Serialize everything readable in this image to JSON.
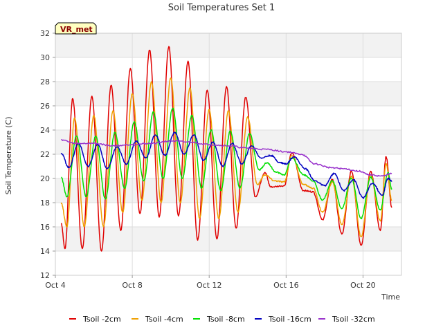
{
  "chart_data": {
    "type": "line",
    "title": "Soil Temperatures Set 1",
    "xlabel": "Time",
    "ylabel": "Soil Temperature (C)",
    "badge": "VR_met",
    "ylim": [
      12,
      32
    ],
    "xlim": [
      "Oct 4",
      "Oct 22"
    ],
    "y_ticks": [
      12,
      14,
      16,
      18,
      20,
      22,
      24,
      26,
      28,
      30,
      32
    ],
    "x_ticks": [
      {
        "label": "Oct 4",
        "day": 4
      },
      {
        "label": "Oct 8",
        "day": 8
      },
      {
        "label": "Oct 12",
        "day": 12
      },
      {
        "label": "Oct 16",
        "day": 16
      },
      {
        "label": "Oct 20",
        "day": 20
      }
    ],
    "grid": true,
    "legend_position": "bottom",
    "series": [
      {
        "name": "Tsoil -2cm",
        "color": "#e00000",
        "points": [
          [
            4.3,
            16.3
          ],
          [
            4.5,
            14.2
          ],
          [
            4.9,
            26.6
          ],
          [
            5.4,
            14.2
          ],
          [
            5.9,
            26.8
          ],
          [
            6.4,
            14.0
          ],
          [
            6.9,
            27.7
          ],
          [
            7.4,
            15.7
          ],
          [
            7.9,
            29.1
          ],
          [
            8.4,
            17.1
          ],
          [
            8.9,
            30.6
          ],
          [
            9.4,
            16.8
          ],
          [
            9.9,
            30.9
          ],
          [
            10.4,
            16.9
          ],
          [
            10.9,
            29.7
          ],
          [
            11.4,
            14.9
          ],
          [
            11.9,
            27.3
          ],
          [
            12.4,
            15.0
          ],
          [
            12.9,
            27.6
          ],
          [
            13.4,
            15.9
          ],
          [
            13.9,
            26.7
          ],
          [
            14.4,
            18.5
          ],
          [
            14.9,
            20.5
          ],
          [
            15.2,
            19.3
          ],
          [
            15.9,
            19.4
          ],
          [
            16.3,
            22.1
          ],
          [
            16.9,
            19.0
          ],
          [
            17.4,
            18.9
          ],
          [
            17.9,
            16.6
          ],
          [
            18.4,
            19.9
          ],
          [
            18.9,
            15.4
          ],
          [
            19.4,
            20.6
          ],
          [
            19.9,
            14.5
          ],
          [
            20.4,
            20.6
          ],
          [
            20.9,
            15.7
          ],
          [
            21.2,
            21.8
          ],
          [
            21.5,
            17.6
          ]
        ]
      },
      {
        "name": "Tsoil -4cm",
        "color": "#f0a000",
        "points": [
          [
            4.3,
            18.0
          ],
          [
            4.6,
            16.0
          ],
          [
            5.0,
            25.0
          ],
          [
            5.5,
            16.0
          ],
          [
            6.0,
            25.2
          ],
          [
            6.5,
            16.0
          ],
          [
            7.0,
            25.6
          ],
          [
            7.5,
            17.2
          ],
          [
            8.0,
            27.0
          ],
          [
            8.5,
            18.2
          ],
          [
            9.0,
            28.0
          ],
          [
            9.5,
            18.0
          ],
          [
            10.0,
            28.3
          ],
          [
            10.5,
            18.0
          ],
          [
            11.0,
            27.5
          ],
          [
            11.5,
            16.7
          ],
          [
            12.0,
            25.7
          ],
          [
            12.5,
            16.7
          ],
          [
            13.0,
            25.6
          ],
          [
            13.5,
            17.2
          ],
          [
            14.0,
            25.1
          ],
          [
            14.5,
            19.5
          ],
          [
            14.9,
            20.3
          ],
          [
            15.4,
            19.8
          ],
          [
            15.9,
            19.7
          ],
          [
            16.3,
            21.9
          ],
          [
            16.9,
            19.5
          ],
          [
            17.4,
            19.2
          ],
          [
            17.9,
            17.2
          ],
          [
            18.4,
            19.7
          ],
          [
            18.9,
            16.2
          ],
          [
            19.4,
            20.2
          ],
          [
            19.9,
            15.2
          ],
          [
            20.4,
            20.3
          ],
          [
            20.9,
            16.5
          ],
          [
            21.2,
            21.2
          ],
          [
            21.5,
            18.2
          ]
        ]
      },
      {
        "name": "Tsoil -8cm",
        "color": "#00e000",
        "points": [
          [
            4.3,
            20.1
          ],
          [
            4.6,
            18.5
          ],
          [
            5.1,
            23.5
          ],
          [
            5.6,
            18.5
          ],
          [
            6.1,
            23.5
          ],
          [
            6.6,
            18.3
          ],
          [
            7.1,
            23.8
          ],
          [
            7.6,
            19.2
          ],
          [
            8.1,
            24.7
          ],
          [
            8.6,
            19.8
          ],
          [
            9.1,
            25.5
          ],
          [
            9.6,
            20.0
          ],
          [
            10.1,
            25.8
          ],
          [
            10.6,
            20.0
          ],
          [
            11.1,
            25.2
          ],
          [
            11.6,
            19.2
          ],
          [
            12.1,
            24.0
          ],
          [
            12.6,
            19.0
          ],
          [
            13.1,
            23.9
          ],
          [
            13.6,
            19.2
          ],
          [
            14.1,
            23.7
          ],
          [
            14.6,
            20.7
          ],
          [
            15.0,
            21.3
          ],
          [
            15.5,
            20.5
          ],
          [
            15.9,
            20.3
          ],
          [
            16.3,
            21.7
          ],
          [
            16.9,
            20.3
          ],
          [
            17.4,
            19.8
          ],
          [
            17.9,
            18.2
          ],
          [
            18.4,
            19.8
          ],
          [
            18.9,
            17.5
          ],
          [
            19.4,
            20.0
          ],
          [
            19.9,
            16.7
          ],
          [
            20.4,
            20.1
          ],
          [
            20.9,
            17.4
          ],
          [
            21.3,
            20.5
          ],
          [
            21.5,
            19.1
          ]
        ]
      },
      {
        "name": "Tsoil -16cm",
        "color": "#0000c0",
        "points": [
          [
            4.3,
            22.1
          ],
          [
            4.7,
            20.9
          ],
          [
            5.2,
            22.9
          ],
          [
            5.7,
            21.0
          ],
          [
            6.2,
            22.8
          ],
          [
            6.7,
            20.8
          ],
          [
            7.2,
            22.6
          ],
          [
            7.7,
            21.2
          ],
          [
            8.2,
            23.1
          ],
          [
            8.7,
            21.7
          ],
          [
            9.2,
            23.6
          ],
          [
            9.7,
            21.9
          ],
          [
            10.2,
            23.8
          ],
          [
            10.7,
            22.0
          ],
          [
            11.2,
            23.6
          ],
          [
            11.7,
            21.5
          ],
          [
            12.2,
            23.0
          ],
          [
            12.7,
            21.0
          ],
          [
            13.2,
            22.9
          ],
          [
            13.7,
            21.2
          ],
          [
            14.2,
            22.7
          ],
          [
            14.7,
            21.7
          ],
          [
            15.2,
            21.9
          ],
          [
            15.7,
            21.3
          ],
          [
            16.0,
            21.2
          ],
          [
            16.4,
            21.8
          ],
          [
            17.0,
            20.8
          ],
          [
            17.5,
            19.8
          ],
          [
            18.0,
            19.4
          ],
          [
            18.5,
            20.4
          ],
          [
            19.0,
            19.0
          ],
          [
            19.5,
            19.9
          ],
          [
            20.0,
            18.4
          ],
          [
            20.5,
            19.6
          ],
          [
            21.0,
            18.6
          ],
          [
            21.3,
            20.0
          ],
          [
            21.5,
            19.8
          ]
        ]
      },
      {
        "name": "Tsoil -32cm",
        "color": "#9933cc",
        "points": [
          [
            4.3,
            23.2
          ],
          [
            5.0,
            22.9
          ],
          [
            6.0,
            22.9
          ],
          [
            7.0,
            22.7
          ],
          [
            8.0,
            22.8
          ],
          [
            9.0,
            22.9
          ],
          [
            10.0,
            23.1
          ],
          [
            11.0,
            23.0
          ],
          [
            12.0,
            22.8
          ],
          [
            13.0,
            22.7
          ],
          [
            14.0,
            22.5
          ],
          [
            15.0,
            22.4
          ],
          [
            16.0,
            22.2
          ],
          [
            16.8,
            22.0
          ],
          [
            17.5,
            21.2
          ],
          [
            18.3,
            20.9
          ],
          [
            19.0,
            20.8
          ],
          [
            19.8,
            20.6
          ],
          [
            20.3,
            20.3
          ],
          [
            21.0,
            20.2
          ],
          [
            21.5,
            20.4
          ]
        ]
      }
    ]
  }
}
